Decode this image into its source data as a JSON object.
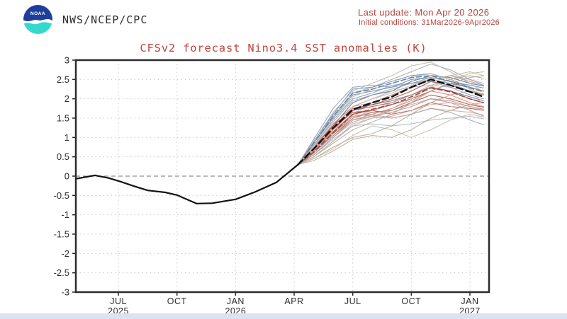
{
  "header": {
    "org": "NWS/NCEP/CPC",
    "logo_text": "NOAA",
    "last_update": "Last update: Mon Apr 20 2026",
    "initial_conditions": "Initial conditions: 31Mar2026-9Apr2026"
  },
  "colors": {
    "header_text": "#b5423a",
    "title_text": "#c1453c",
    "background": "#ffffff",
    "footer_strip": "#dce3f0",
    "plot_border": "#2b2b2b",
    "grid": "#c9c9c9",
    "zero_line": "#8f8f8f",
    "axis_text": "#2e2e2e",
    "observed": "#111111",
    "ensemble_mean": "#111111",
    "logo_blue": "#1d3e9b",
    "logo_cyan": "#33d9cc"
  },
  "chart_data": {
    "type": "line",
    "title": "CFSv2 forecast Nino3.4 SST anomalies (K)",
    "xlabel": "",
    "ylabel": "",
    "grid": "dotted",
    "legend": "none",
    "x_unit": "months since Jan 2025",
    "x_axis": {
      "lim": [
        3.82,
        24.98
      ],
      "ticks": [
        {
          "pos": 6,
          "label": "JUL",
          "year": "2025"
        },
        {
          "pos": 9,
          "label": "OCT",
          "year": ""
        },
        {
          "pos": 12,
          "label": "JAN",
          "year": "2026"
        },
        {
          "pos": 15,
          "label": "APR",
          "year": ""
        },
        {
          "pos": 18,
          "label": "JUL",
          "year": ""
        },
        {
          "pos": 21,
          "label": "OCT",
          "year": ""
        },
        {
          "pos": 24,
          "label": "JAN",
          "year": "2027"
        }
      ]
    },
    "y_axis": {
      "lim": [
        -3,
        3
      ],
      "ticks": [
        {
          "value": 3,
          "label": "3"
        },
        {
          "value": 2.5,
          "label": "2.5"
        },
        {
          "value": 2,
          "label": "2"
        },
        {
          "value": 1.5,
          "label": "1.5"
        },
        {
          "value": 1,
          "label": "1"
        },
        {
          "value": 0.5,
          "label": "0.5"
        },
        {
          "value": 0,
          "label": "0"
        },
        {
          "value": -0.5,
          "label": "-0.5"
        },
        {
          "value": -1,
          "label": "-1"
        },
        {
          "value": -1.5,
          "label": "-1.5"
        },
        {
          "value": -2,
          "label": "-2"
        },
        {
          "value": -2.5,
          "label": "-2.5"
        },
        {
          "value": -3,
          "label": "-3"
        }
      ]
    },
    "observed": {
      "name": "observed Nino3.4 SST anomaly",
      "x": [
        3.82,
        4.8,
        5.5,
        6.1,
        6.8,
        7.5,
        8.4,
        9.0,
        10.0,
        10.8,
        12.0,
        13.0,
        14.1,
        15.2
      ],
      "values": [
        -0.07,
        0.02,
        -0.05,
        -0.14,
        -0.26,
        -0.37,
        -0.42,
        -0.49,
        -0.71,
        -0.7,
        -0.6,
        -0.41,
        -0.16,
        0.3
      ]
    },
    "forecast_x": [
      15.2,
      16,
      17,
      18,
      19,
      20,
      21,
      22,
      23,
      24,
      24.7
    ],
    "ensemble_mean": {
      "name": "ensemble mean",
      "values": [
        0.3,
        0.7,
        1.25,
        1.72,
        1.9,
        2.05,
        2.3,
        2.5,
        2.35,
        2.18,
        2.05
      ]
    },
    "group_means": [
      {
        "color_key": "blue",
        "values": [
          0.3,
          0.85,
          1.55,
          2.15,
          2.25,
          2.4,
          2.55,
          2.6,
          2.45,
          2.28,
          2.18
        ]
      },
      {
        "color_key": "red",
        "values": [
          0.3,
          0.62,
          1.12,
          1.6,
          1.73,
          1.85,
          2.05,
          2.28,
          2.18,
          2.0,
          1.9
        ]
      }
    ],
    "member_palette": {
      "blue": "#5c7fa8",
      "steel": "#7e99b8",
      "lightblue": "#9fb4cc",
      "navy": "#47618c",
      "red": "#b23b30",
      "brickred": "#a04a40",
      "lightred": "#c97f72",
      "salmon": "#d8a095",
      "tan": "#b3a48f",
      "khaki": "#c2b6a2",
      "gray": "#a0a0a0",
      "ltgray": "#b8b2a6"
    },
    "members": [
      {
        "c": "blue",
        "v": [
          0.3,
          0.9,
          1.6,
          2.25,
          2.3,
          2.45,
          2.6,
          2.65,
          2.5,
          2.3,
          2.2
        ]
      },
      {
        "c": "blue",
        "v": [
          0.3,
          0.85,
          1.5,
          2.1,
          2.2,
          2.3,
          2.5,
          2.55,
          2.45,
          2.35,
          2.28
        ]
      },
      {
        "c": "steel",
        "v": [
          0.3,
          0.8,
          1.45,
          2.0,
          2.15,
          2.35,
          2.4,
          2.5,
          2.4,
          2.2,
          2.1
        ]
      },
      {
        "c": "navy",
        "v": [
          0.3,
          0.75,
          1.3,
          1.9,
          2.1,
          2.2,
          2.45,
          2.6,
          2.55,
          2.4,
          2.33
        ]
      },
      {
        "c": "lightblue",
        "v": [
          0.3,
          0.7,
          1.35,
          1.8,
          2.0,
          2.2,
          2.3,
          2.35,
          2.3,
          2.2,
          2.12
        ]
      },
      {
        "c": "steel",
        "v": [
          0.3,
          0.95,
          1.75,
          2.3,
          2.35,
          2.3,
          2.4,
          2.45,
          2.3,
          2.1,
          2.0
        ]
      },
      {
        "c": "lightblue",
        "v": [
          0.3,
          0.6,
          1.1,
          1.6,
          1.9,
          2.1,
          2.3,
          2.5,
          2.6,
          2.5,
          2.4
        ]
      },
      {
        "c": "navy",
        "v": [
          0.3,
          0.65,
          1.2,
          1.7,
          1.85,
          1.95,
          2.1,
          2.3,
          2.2,
          2.05,
          1.95
        ]
      },
      {
        "c": "lightblue",
        "v": [
          0.3,
          0.55,
          0.95,
          1.3,
          1.35,
          1.3,
          1.35,
          1.45,
          1.5,
          1.55,
          1.48
        ]
      },
      {
        "c": "red",
        "v": [
          0.3,
          0.7,
          1.2,
          1.7,
          1.8,
          1.9,
          2.1,
          2.3,
          2.2,
          2.0,
          1.9
        ]
      },
      {
        "c": "red",
        "v": [
          0.3,
          0.75,
          1.3,
          1.75,
          1.85,
          2.0,
          2.2,
          2.45,
          2.35,
          2.2,
          2.1
        ]
      },
      {
        "c": "brickred",
        "v": [
          0.3,
          0.65,
          1.15,
          1.6,
          1.7,
          1.85,
          2.0,
          2.2,
          2.4,
          2.3,
          2.2
        ]
      },
      {
        "c": "red",
        "v": [
          0.3,
          0.6,
          1.05,
          1.5,
          1.65,
          1.7,
          1.9,
          2.1,
          2.0,
          1.85,
          1.78
        ]
      },
      {
        "c": "brickred",
        "v": [
          0.3,
          0.7,
          1.25,
          1.65,
          1.7,
          1.6,
          1.7,
          1.9,
          1.8,
          1.75,
          1.7
        ]
      },
      {
        "c": "lightred",
        "v": [
          0.3,
          0.55,
          1.0,
          1.45,
          1.55,
          1.65,
          1.8,
          2.0,
          1.95,
          1.8,
          1.73
        ]
      },
      {
        "c": "lightred",
        "v": [
          0.3,
          0.75,
          1.35,
          1.8,
          1.9,
          2.1,
          2.3,
          2.5,
          2.6,
          2.45,
          2.35
        ]
      },
      {
        "c": "lightred",
        "v": [
          0.3,
          0.6,
          1.1,
          1.55,
          1.6,
          1.75,
          1.95,
          2.2,
          2.1,
          1.9,
          1.8
        ]
      },
      {
        "c": "salmon",
        "v": [
          0.3,
          0.5,
          0.9,
          1.35,
          1.5,
          1.55,
          1.7,
          1.85,
          1.9,
          1.8,
          1.7
        ]
      },
      {
        "c": "salmon",
        "v": [
          0.3,
          0.65,
          1.2,
          1.6,
          1.55,
          1.5,
          1.6,
          1.75,
          1.7,
          1.65,
          1.58
        ]
      },
      {
        "c": "tan",
        "v": [
          0.3,
          0.5,
          0.85,
          1.2,
          1.4,
          1.6,
          1.9,
          2.2,
          2.4,
          2.55,
          2.6
        ]
      },
      {
        "c": "tan",
        "v": [
          0.3,
          0.45,
          0.75,
          1.0,
          1.1,
          1.3,
          1.6,
          1.9,
          2.1,
          2.2,
          2.13
        ]
      },
      {
        "c": "tan",
        "v": [
          0.3,
          0.4,
          0.65,
          0.95,
          1.05,
          1.0,
          1.2,
          1.5,
          1.7,
          1.85,
          1.9
        ]
      },
      {
        "c": "khaki",
        "v": [
          0.3,
          0.45,
          0.7,
          1.05,
          1.3,
          1.2,
          1.0,
          1.2,
          1.45,
          1.6,
          1.53
        ]
      },
      {
        "c": "gray",
        "v": [
          0.3,
          0.8,
          1.4,
          1.95,
          2.1,
          2.25,
          2.4,
          2.55,
          2.45,
          2.3,
          2.2
        ]
      },
      {
        "c": "gray",
        "v": [
          0.3,
          0.85,
          1.55,
          2.15,
          2.3,
          2.5,
          2.7,
          2.9,
          2.75,
          2.5,
          2.35
        ]
      },
      {
        "c": "ltgray",
        "v": [
          0.3,
          0.9,
          1.65,
          2.2,
          2.4,
          2.6,
          2.85,
          2.95,
          2.7,
          2.4,
          2.18
        ]
      },
      {
        "c": "khaki",
        "v": [
          0.3,
          0.7,
          1.25,
          1.8,
          2.0,
          2.15,
          2.35,
          2.5,
          2.6,
          2.7,
          2.6
        ]
      },
      {
        "c": "tan",
        "v": [
          0.3,
          0.6,
          1.1,
          1.5,
          1.7,
          1.9,
          2.1,
          2.35,
          2.5,
          2.6,
          2.53
        ]
      },
      {
        "c": "gray",
        "v": [
          0.3,
          0.55,
          1.0,
          1.4,
          1.55,
          1.7,
          1.85,
          2.0,
          1.9,
          1.7,
          1.55
        ]
      },
      {
        "c": "ltgray",
        "v": [
          0.3,
          0.5,
          0.9,
          1.3,
          1.5,
          1.75,
          2.0,
          2.3,
          2.5,
          2.65,
          2.7
        ]
      },
      {
        "c": "khaki",
        "v": [
          0.3,
          0.75,
          1.45,
          2.05,
          2.25,
          2.4,
          2.55,
          2.65,
          2.5,
          2.25,
          2.1
        ]
      },
      {
        "c": "gray",
        "v": [
          0.3,
          0.6,
          1.05,
          1.45,
          1.6,
          1.5,
          1.6,
          1.75,
          1.65,
          1.45,
          1.33
        ]
      }
    ]
  }
}
